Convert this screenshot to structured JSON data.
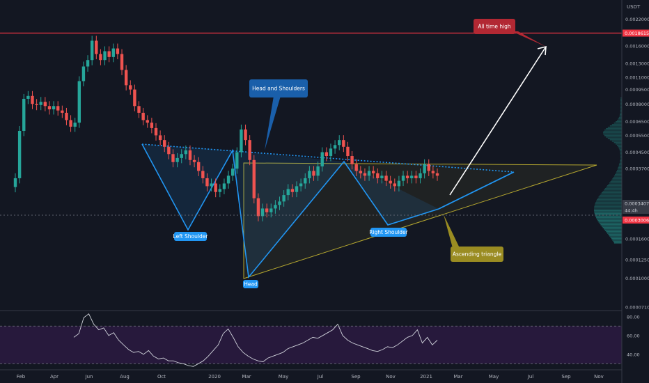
{
  "symbol_unit": "USDT",
  "colors": {
    "background": "#131722",
    "up": "#26a69a",
    "down": "#ef5350",
    "hs_line": "#2196f3",
    "triangle": "#b5a72f",
    "ath_line": "#f23645",
    "rsi_line": "#d1d4dc",
    "rsi_band": "#311b47",
    "last_price_bg": "#26a69a",
    "ath_label_bg": "#f23645"
  },
  "chart_data": {
    "type": "candlestick",
    "price_axis": {
      "scale": "log",
      "ticks": [
        "0.0022000",
        "0.0016000",
        "0.0013000",
        "0.0011000",
        "0.0009500",
        "0.0008000",
        "0.0006500",
        "0.0005500",
        "0.0004500",
        "0.0003700",
        "0.0002500",
        "0.0002000",
        "0.0001600",
        "0.0001250",
        "0.0001000",
        "0.0000710"
      ],
      "badges": [
        {
          "text": "0.0018615",
          "kind": "ath"
        },
        {
          "text": "0.0003407",
          "kind": "current"
        },
        {
          "text": "44:4h",
          "kind": "timer"
        },
        {
          "text": "0.0003006",
          "kind": "level"
        }
      ]
    },
    "time_axis": [
      "Feb",
      "Apr",
      "Jun",
      "Aug",
      "Oct",
      "2020",
      "Mar",
      "May",
      "Jul",
      "Sep",
      "Nov",
      "2021",
      "Mar",
      "May",
      "Jul",
      "Sep",
      "Nov"
    ],
    "annotations": {
      "ath": "All time high",
      "hs": "Head and Shoulders",
      "left_shoulder": "Left Shoulder",
      "head": "Head",
      "right_shoulder": "Right Shoulder",
      "triangle": "Ascending triangle"
    },
    "ath_price": 0.0018615,
    "rsi": {
      "ticks": [
        "80.00",
        "60.00",
        "40.00"
      ],
      "upper": 70,
      "lower": 30,
      "values": [
        58,
        62,
        79,
        83,
        72,
        66,
        68,
        60,
        63,
        55,
        50,
        45,
        42,
        43,
        40,
        44,
        38,
        35,
        36,
        33,
        33,
        31,
        30,
        28,
        27,
        30,
        33,
        38,
        44,
        50,
        62,
        67,
        58,
        48,
        42,
        38,
        35,
        33,
        32,
        36,
        38,
        40,
        42,
        46,
        48,
        50,
        52,
        55,
        58,
        57,
        60,
        63,
        66,
        72,
        60,
        55,
        52,
        50,
        48,
        46,
        44,
        43,
        45,
        48,
        47,
        50,
        54,
        58,
        60,
        66,
        52,
        58,
        50,
        55
      ]
    },
    "candles_close": [
      0.00033,
      0.00058,
      0.00085,
      0.00088,
      0.0008,
      0.00079,
      0.00082,
      0.00078,
      0.00075,
      0.00078,
      0.00074,
      0.00072,
      0.00066,
      0.00061,
      0.00064,
      0.00105,
      0.00125,
      0.00135,
      0.0017,
      0.00145,
      0.00135,
      0.0015,
      0.0014,
      0.00155,
      0.00145,
      0.0012,
      0.001,
      0.00095,
      0.00078,
      0.00072,
      0.00066,
      0.00064,
      0.0006,
      0.00055,
      0.00052,
      0.00048,
      0.00044,
      0.0004,
      0.00042,
      0.00044,
      0.00046,
      0.00041,
      0.0004,
      0.00036,
      0.00033,
      0.0003,
      0.00031,
      0.00028,
      0.00029,
      0.00031,
      0.00034,
      0.00037,
      0.00045,
      0.00059,
      0.00052,
      0.00041,
      0.00026,
      0.00021,
      0.00023,
      0.00022,
      0.00023,
      0.00024,
      0.00025,
      0.00027,
      0.00029,
      0.00028,
      0.0003,
      0.00031,
      0.00033,
      0.00036,
      0.00034,
      0.00038,
      0.00045,
      0.00043,
      0.00047,
      0.00049,
      0.00052,
      0.00048,
      0.00043,
      0.00039,
      0.00036,
      0.00035,
      0.00034,
      0.00036,
      0.00035,
      0.00033,
      0.00034,
      0.00032,
      0.00031,
      0.0003,
      0.00032,
      0.00034,
      0.00033,
      0.00034,
      0.00033,
      0.00035,
      0.00039,
      0.00036,
      0.00035,
      0.00034
    ]
  }
}
